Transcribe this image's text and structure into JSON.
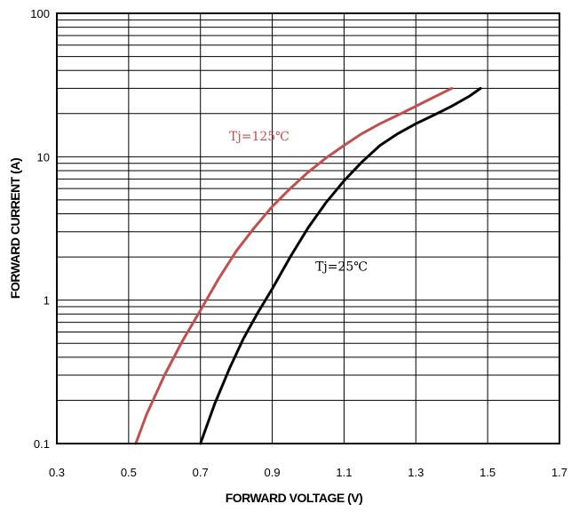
{
  "chart_data": {
    "type": "line",
    "xlabel": "FORWARD VOLTAGE (V)",
    "ylabel": "FORWARD CURRENT (A)",
    "xlim": [
      0.3,
      1.7
    ],
    "ylim": [
      0.1,
      100
    ],
    "y_scale": "log",
    "grid": true,
    "x_ticks": [
      {
        "value": 0.3,
        "label": "0.3"
      },
      {
        "value": 0.5,
        "label": "0.5"
      },
      {
        "value": 0.7,
        "label": "0.7"
      },
      {
        "value": 0.9,
        "label": "0.9"
      },
      {
        "value": 1.1,
        "label": "1.1"
      },
      {
        "value": 1.3,
        "label": "1.3"
      },
      {
        "value": 1.5,
        "label": "1.5"
      },
      {
        "value": 1.7,
        "label": "1.7"
      }
    ],
    "y_ticks": [
      {
        "value": 0.1,
        "label": "0.1"
      },
      {
        "value": 1,
        "label": "1"
      },
      {
        "value": 10,
        "label": "10"
      },
      {
        "value": 100,
        "label": "100"
      }
    ],
    "series": [
      {
        "name": "Tj=125℃",
        "color": "#c0504d",
        "x": [
          0.52,
          0.55,
          0.6,
          0.65,
          0.7,
          0.75,
          0.8,
          0.85,
          0.9,
          0.95,
          1.0,
          1.05,
          1.1,
          1.15,
          1.2,
          1.25,
          1.3,
          1.35,
          1.4
        ],
        "y": [
          0.1,
          0.16,
          0.3,
          0.52,
          0.85,
          1.4,
          2.2,
          3.2,
          4.5,
          6.0,
          7.8,
          9.8,
          12.0,
          14.5,
          17.0,
          19.5,
          22.5,
          26.0,
          30.0
        ]
      },
      {
        "name": "Tj=25℃",
        "color": "#000000",
        "x": [
          0.7,
          0.74,
          0.78,
          0.82,
          0.86,
          0.9,
          0.95,
          1.0,
          1.05,
          1.1,
          1.15,
          1.2,
          1.25,
          1.3,
          1.35,
          1.4,
          1.45,
          1.48
        ],
        "y": [
          0.1,
          0.19,
          0.33,
          0.54,
          0.82,
          1.2,
          2.0,
          3.2,
          4.8,
          6.8,
          9.2,
          12.0,
          14.5,
          17.0,
          19.5,
          22.5,
          26.5,
          30.0
        ]
      }
    ],
    "annotations": [
      {
        "text": "Tj=125℃",
        "color": "#c0504d",
        "x": 0.78,
        "y": 13.0
      },
      {
        "text": "Tj=25℃",
        "color": "#000000",
        "x": 1.02,
        "y": 1.6
      }
    ]
  }
}
